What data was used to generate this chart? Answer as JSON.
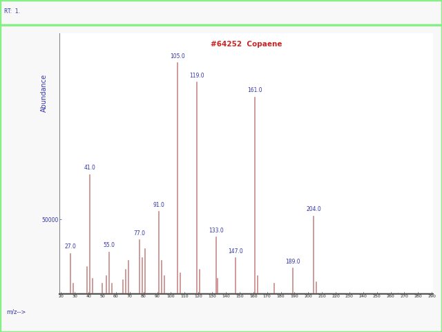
{
  "title": "#64252  Copaene",
  "ylabel": "Abundance",
  "xlabel": "m/z-->",
  "xmin": 20,
  "xmax": 290,
  "ymin": 0,
  "ymax": 175000,
  "ytick_label": "50000",
  "ytick_val": 50000,
  "bg_color": "#f8f8f8",
  "border_color": "#88ee88",
  "plot_bg": "#ffffff",
  "bar_color": "#c88888",
  "peaks": [
    {
      "mz": 27,
      "intensity": 27000,
      "label": "27.0"
    },
    {
      "mz": 29,
      "intensity": 7000,
      "label": null
    },
    {
      "mz": 39,
      "intensity": 18000,
      "label": null
    },
    {
      "mz": 41,
      "intensity": 80000,
      "label": "41.0"
    },
    {
      "mz": 43,
      "intensity": 10000,
      "label": null
    },
    {
      "mz": 50,
      "intensity": 7000,
      "label": null
    },
    {
      "mz": 53,
      "intensity": 12000,
      "label": null
    },
    {
      "mz": 55,
      "intensity": 28000,
      "label": "55.0"
    },
    {
      "mz": 57,
      "intensity": 7000,
      "label": null
    },
    {
      "mz": 65,
      "intensity": 9000,
      "label": null
    },
    {
      "mz": 67,
      "intensity": 16000,
      "label": null
    },
    {
      "mz": 69,
      "intensity": 22000,
      "label": null
    },
    {
      "mz": 77,
      "intensity": 36000,
      "label": "77.0"
    },
    {
      "mz": 79,
      "intensity": 24000,
      "label": null
    },
    {
      "mz": 81,
      "intensity": 30000,
      "label": null
    },
    {
      "mz": 91,
      "intensity": 55000,
      "label": "91.0"
    },
    {
      "mz": 93,
      "intensity": 22000,
      "label": null
    },
    {
      "mz": 95,
      "intensity": 12000,
      "label": null
    },
    {
      "mz": 105,
      "intensity": 155000,
      "label": "105.0"
    },
    {
      "mz": 107,
      "intensity": 14000,
      "label": null
    },
    {
      "mz": 119,
      "intensity": 142000,
      "label": "119.0"
    },
    {
      "mz": 121,
      "intensity": 16000,
      "label": null
    },
    {
      "mz": 133,
      "intensity": 38000,
      "label": "133.0"
    },
    {
      "mz": 134,
      "intensity": 10000,
      "label": null
    },
    {
      "mz": 147,
      "intensity": 24000,
      "label": "147.0"
    },
    {
      "mz": 161,
      "intensity": 132000,
      "label": "161.0"
    },
    {
      "mz": 163,
      "intensity": 12000,
      "label": null
    },
    {
      "mz": 175,
      "intensity": 7000,
      "label": null
    },
    {
      "mz": 189,
      "intensity": 17000,
      "label": "189.0"
    },
    {
      "mz": 204,
      "intensity": 52000,
      "label": "204.0"
    },
    {
      "mz": 206,
      "intensity": 8000,
      "label": null
    }
  ],
  "title_color": "#cc2222",
  "label_color": "#3333aa",
  "ylabel_color": "#3333aa",
  "xlabel_color": "#3333aa",
  "tick_label_color": "#222222",
  "xticks": [
    20,
    30,
    40,
    50,
    60,
    70,
    80,
    90,
    100,
    110,
    120,
    130,
    140,
    150,
    160,
    170,
    180,
    190,
    200,
    210,
    220,
    230,
    240,
    250,
    260,
    270,
    280,
    290
  ],
  "header_text": "RT:  1.",
  "border_top_line_y": 0.925,
  "outer_border_lw": 2.5
}
